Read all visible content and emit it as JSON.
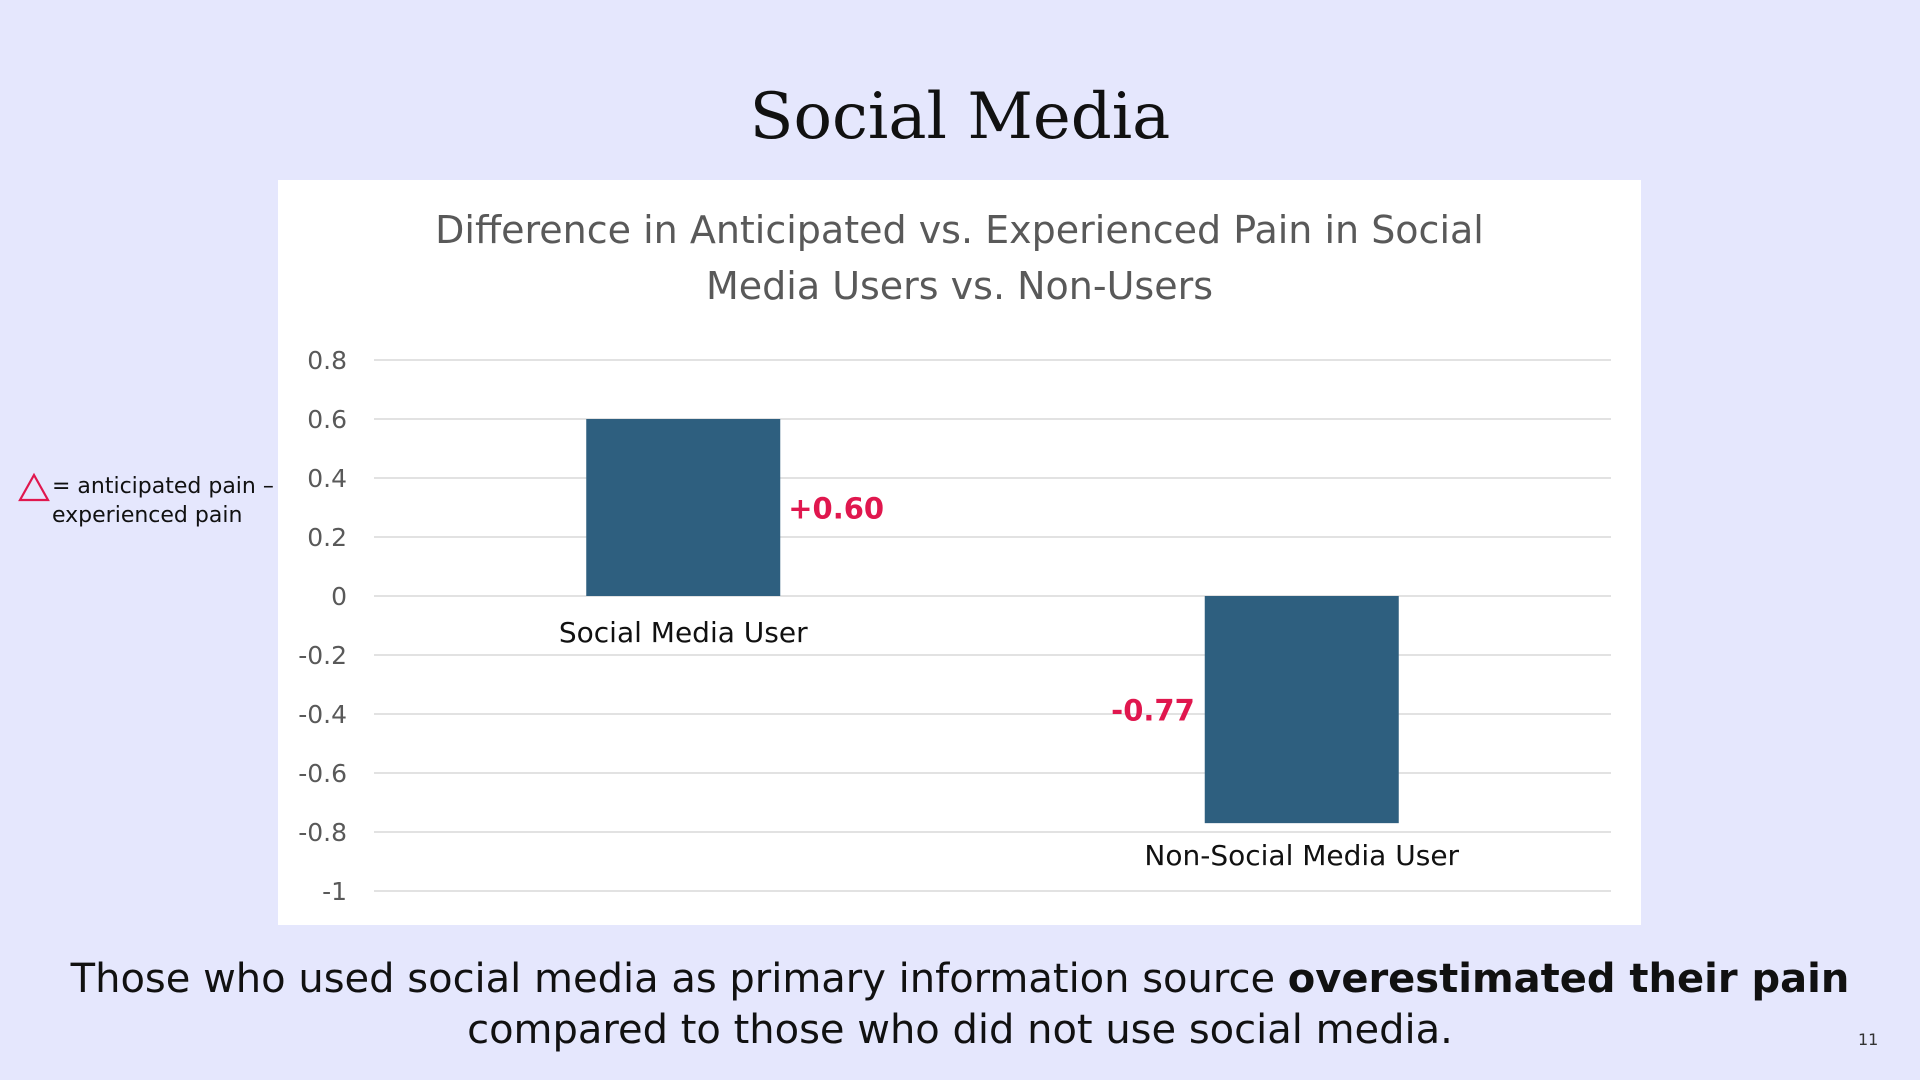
{
  "slide": {
    "title": "Social Media",
    "page_number": "11",
    "caption_part1": "Those who used social media as primary information source ",
    "caption_bold": "overestimated their pain",
    "caption_line2": "compared to those who did not use social media."
  },
  "legend_note": {
    "icon": "triangle-delta-icon",
    "text_line1": "= anticipated pain –",
    "text_line2": "experienced pain"
  },
  "colors": {
    "background": "#e5e7fd",
    "bar": "#2e5f7f",
    "value_label": "#e0174e",
    "gridline": "#d9d9d9",
    "axis_text": "#595959"
  },
  "chart_data": {
    "type": "bar",
    "title_line1": "Difference in Anticipated vs. Experienced Pain in Social",
    "title_line2": "Media Users vs. Non-Users",
    "categories": [
      "Social Media User",
      "Non-Social Media User"
    ],
    "values": [
      0.6,
      -0.77
    ],
    "data_labels": [
      "+0.60",
      "-0.77"
    ],
    "ylim": [
      -1,
      0.8
    ],
    "yticks": [
      0.8,
      0.6,
      0.4,
      0.2,
      0,
      -0.2,
      -0.4,
      -0.6,
      -0.8,
      -1
    ],
    "ytick_labels": [
      "0.8",
      "0.6",
      "0.4",
      "0.2",
      "0",
      "-0.2",
      "-0.4",
      "-0.6",
      "-0.8",
      "-1"
    ],
    "xlabel": "",
    "ylabel": "",
    "grid": true,
    "legend": "none"
  }
}
